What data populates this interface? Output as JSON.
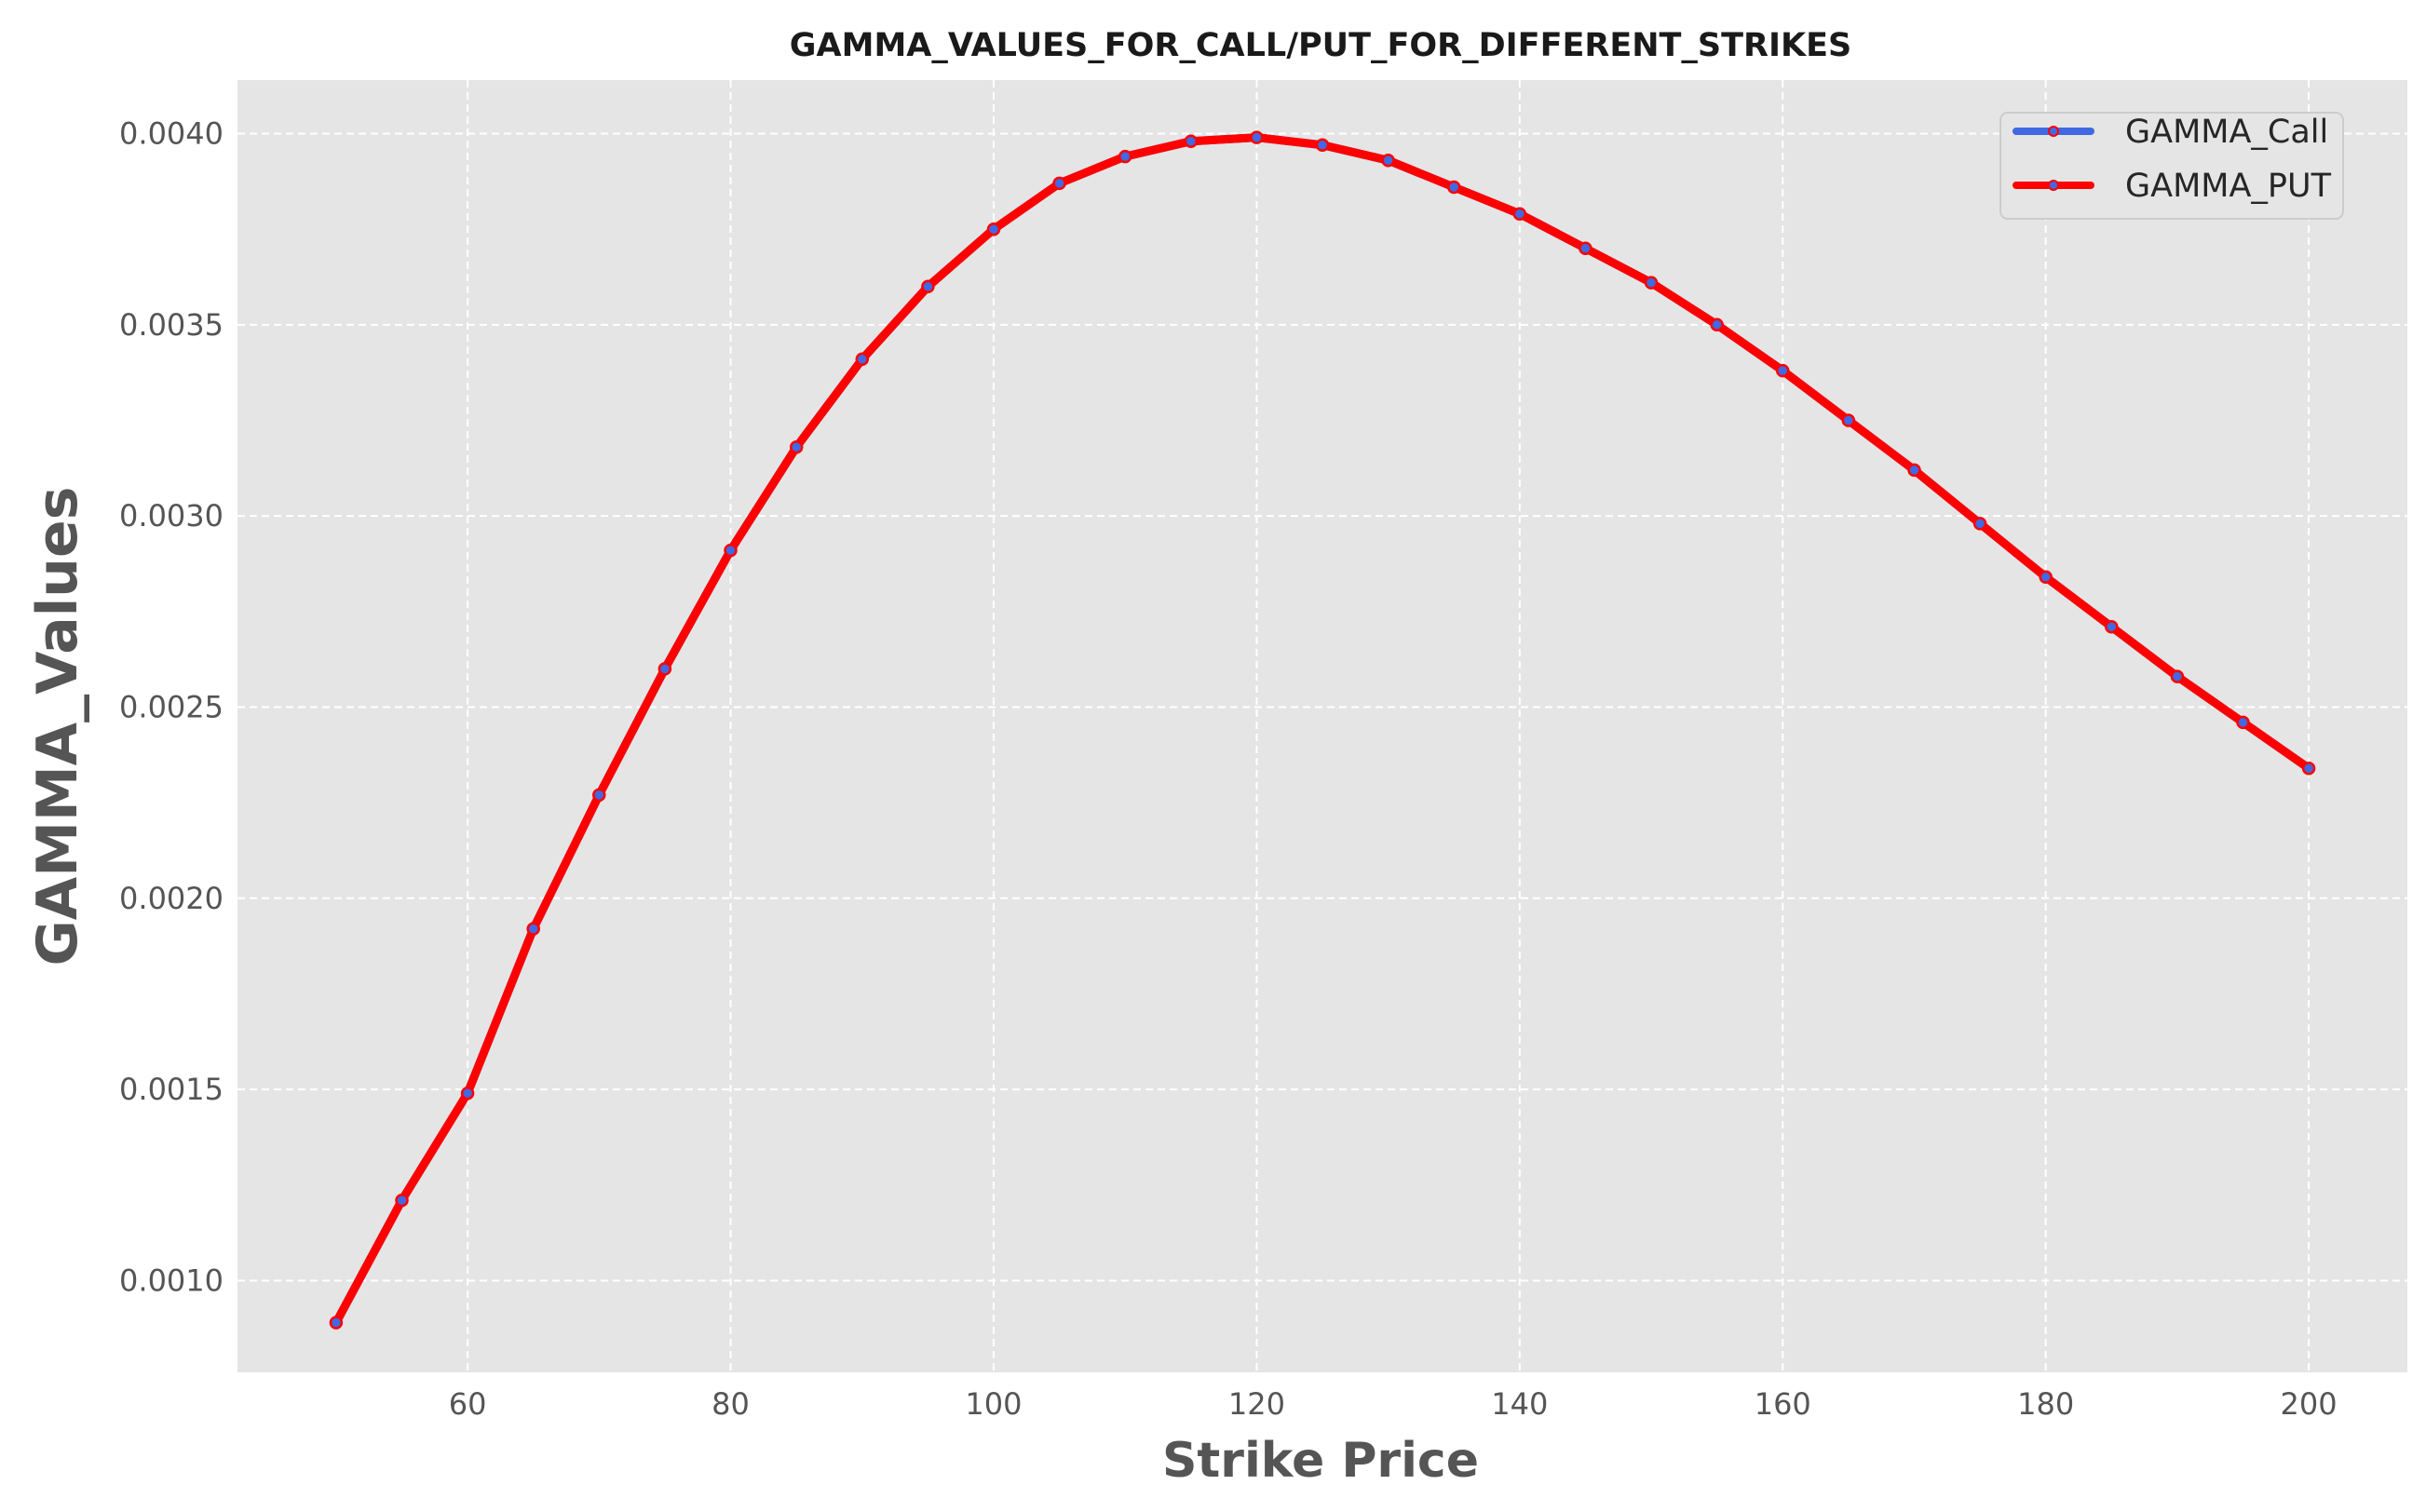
{
  "chart_data": {
    "type": "line",
    "title": "GAMMA_VALUES_FOR_CALL/PUT_FOR_DIFFERENT_STRIKES",
    "xlabel": "Strike Price",
    "ylabel": "GAMMA_Values",
    "xlim": [
      42.5,
      207.5
    ],
    "ylim": [
      0.00076,
      0.00414
    ],
    "x_ticks": [
      60,
      80,
      100,
      120,
      140,
      160,
      180,
      200
    ],
    "x_tick_labels": [
      "60",
      "80",
      "100",
      "120",
      "140",
      "160",
      "180",
      "200"
    ],
    "y_ticks": [
      0.001,
      0.0015,
      0.002,
      0.0025,
      0.003,
      0.0035,
      0.004
    ],
    "y_tick_labels": [
      "0.0010",
      "0.0015",
      "0.0020",
      "0.0025",
      "0.0030",
      "0.0035",
      "0.0040"
    ],
    "grid": true,
    "legend_position": "top-right",
    "background_color": "#e5e5e5",
    "x": [
      50,
      55,
      60,
      65,
      70,
      75,
      80,
      85,
      90,
      95,
      100,
      105,
      110,
      115,
      120,
      125,
      130,
      135,
      140,
      145,
      150,
      155,
      160,
      165,
      170,
      175,
      180,
      185,
      190,
      195,
      200
    ],
    "series": [
      {
        "name": "GAMMA_Call",
        "color": "#4169e1",
        "values": [
          0.00089,
          0.00121,
          0.00149,
          0.00192,
          0.00227,
          0.0026,
          0.00291,
          0.00318,
          0.00341,
          0.0036,
          0.00375,
          0.00387,
          0.00394,
          0.00398,
          0.00399,
          0.00397,
          0.00393,
          0.00386,
          0.00379,
          0.0037,
          0.00361,
          0.0035,
          0.00338,
          0.00325,
          0.00312,
          0.00298,
          0.00284,
          0.00271,
          0.00258,
          0.00246,
          0.00234
        ]
      },
      {
        "name": "GAMMA_PUT",
        "color": "#ff0000",
        "values": [
          0.00089,
          0.00121,
          0.00149,
          0.00192,
          0.00227,
          0.0026,
          0.00291,
          0.00318,
          0.00341,
          0.0036,
          0.00375,
          0.00387,
          0.00394,
          0.00398,
          0.00399,
          0.00397,
          0.00393,
          0.00386,
          0.00379,
          0.0037,
          0.00361,
          0.0035,
          0.00338,
          0.00325,
          0.00312,
          0.00298,
          0.00284,
          0.00271,
          0.00258,
          0.00246,
          0.00234
        ]
      }
    ]
  }
}
